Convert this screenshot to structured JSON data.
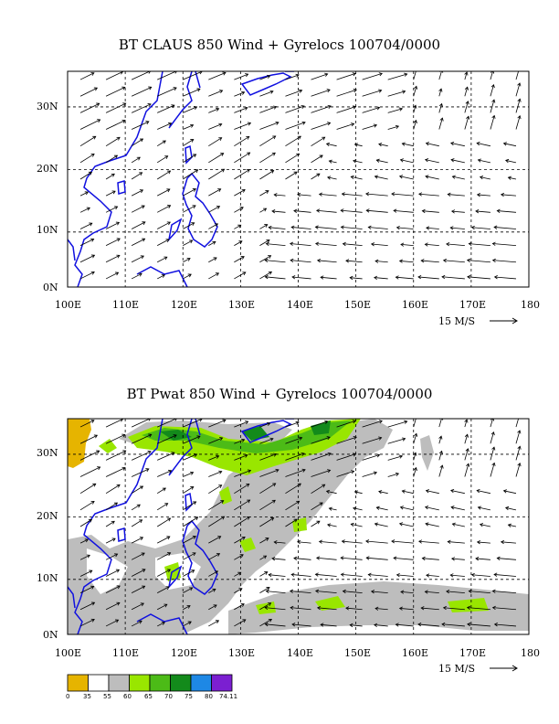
{
  "panels": [
    {
      "title": "BT CLAUS 850 Wind + Gyrelocs 100704/0000",
      "y_labels": [
        "30N",
        "20N",
        "10N",
        "0N"
      ],
      "x_labels": [
        "100E",
        "110E",
        "120E",
        "130E",
        "140E",
        "150E",
        "160E",
        "170E",
        "180"
      ],
      "scale_label": "15 M/S"
    },
    {
      "title": "BT Pwat 850 Wind + Gyrelocs 100704/0000",
      "y_labels": [
        "30N",
        "20N",
        "10N",
        "0N"
      ],
      "x_labels": [
        "100E",
        "110E",
        "120E",
        "130E",
        "140E",
        "150E",
        "160E",
        "170E",
        "180"
      ],
      "scale_label": "15 M/S"
    }
  ],
  "legend": {
    "labels": [
      "0",
      "35",
      "55",
      "60",
      "65",
      "70",
      "75",
      "80",
      "74.11"
    ],
    "colors": [
      "#e6b400",
      "#ffffff",
      "#bdbdbd",
      "#99e600",
      "#4cbb17",
      "#138a1b",
      "#1e88e5",
      "#7b1fd1"
    ]
  },
  "colors": {
    "coastline": "#1010e0",
    "grid": "#000000",
    "vector": "#000000"
  }
}
